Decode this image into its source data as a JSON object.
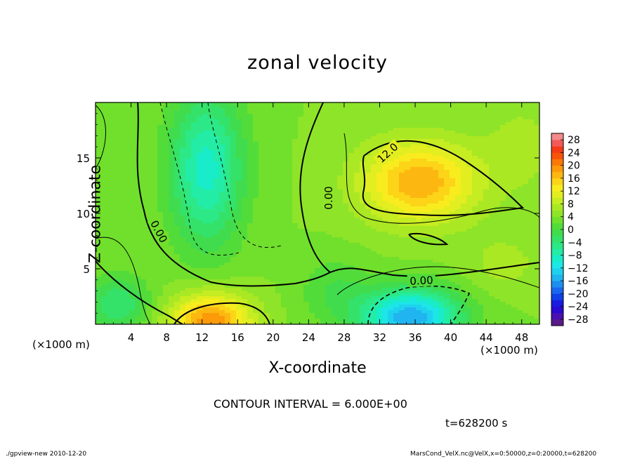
{
  "title": "zonal velocity",
  "footer": {
    "left": "./gpview-new   2010-12-20",
    "right": "MarsCond_VelX.nc@VelX,x=0:50000,z=0:20000,t=628200"
  },
  "contour_interval": "CONTOUR INTERVAL = 6.000E+00",
  "time_label": "t=628200 s",
  "x_unit_left": "(×1000 m)",
  "x_unit_right": "(×1000 m)",
  "chart_data": {
    "type": "heatmap",
    "title": "zonal velocity",
    "xlabel": "X-coordinate",
    "ylabel": "Z-coordinate",
    "x_unit": "(×1000 m)",
    "xlim": [
      0,
      50
    ],
    "ylim": [
      0,
      20
    ],
    "x_ticks": [
      4,
      8,
      12,
      16,
      20,
      24,
      28,
      32,
      36,
      40,
      44,
      48
    ],
    "y_ticks": [
      5,
      10,
      15
    ],
    "colorbar": {
      "levels": [
        -30,
        -28,
        -26,
        -24,
        -22,
        -20,
        -18,
        -16,
        -14,
        -12,
        -10,
        -8,
        -6,
        -4,
        -2,
        0,
        2,
        4,
        6,
        8,
        10,
        12,
        14,
        16,
        18,
        20,
        22,
        24,
        26,
        28,
        30
      ],
      "labels": [
        "28",
        "24",
        "20",
        "16",
        "12",
        "8",
        "4",
        "0",
        "−4",
        "−8",
        "−12",
        "−16",
        "−20",
        "−24",
        "−28"
      ],
      "colors": [
        "#5a1a8a",
        "#4a10b0",
        "#2a0ad0",
        "#1a1ae0",
        "#1040e8",
        "#1a66ee",
        "#1e8ef0",
        "#20b4f0",
        "#1ed2ee",
        "#1ce6e6",
        "#18ecc8",
        "#22eca6",
        "#2ce886",
        "#34e26a",
        "#40dc4e",
        "#52dc3a",
        "#70e02c",
        "#8ee428",
        "#aae824",
        "#c6ec22",
        "#e2ee20",
        "#f8ec1e",
        "#fcd418",
        "#fcb810",
        "#fc9a0a",
        "#fa7808",
        "#f85408",
        "#f43a16",
        "#f25a5a",
        "#f48a8a"
      ]
    },
    "contour_labels": [
      "0.00",
      "0.00",
      "0.00",
      "12.0"
    ],
    "features": [
      {
        "kind": "max",
        "x": 13,
        "z": 0.8,
        "value": 18
      },
      {
        "kind": "max",
        "x": 36,
        "z": 12.5,
        "value": 16
      },
      {
        "kind": "min",
        "x": 36,
        "z": 1.2,
        "value": -14
      },
      {
        "kind": "min",
        "x": 12,
        "z": 14,
        "value": -9
      },
      {
        "kind": "min",
        "x": 3,
        "z": 1.5,
        "value": -6
      }
    ]
  }
}
